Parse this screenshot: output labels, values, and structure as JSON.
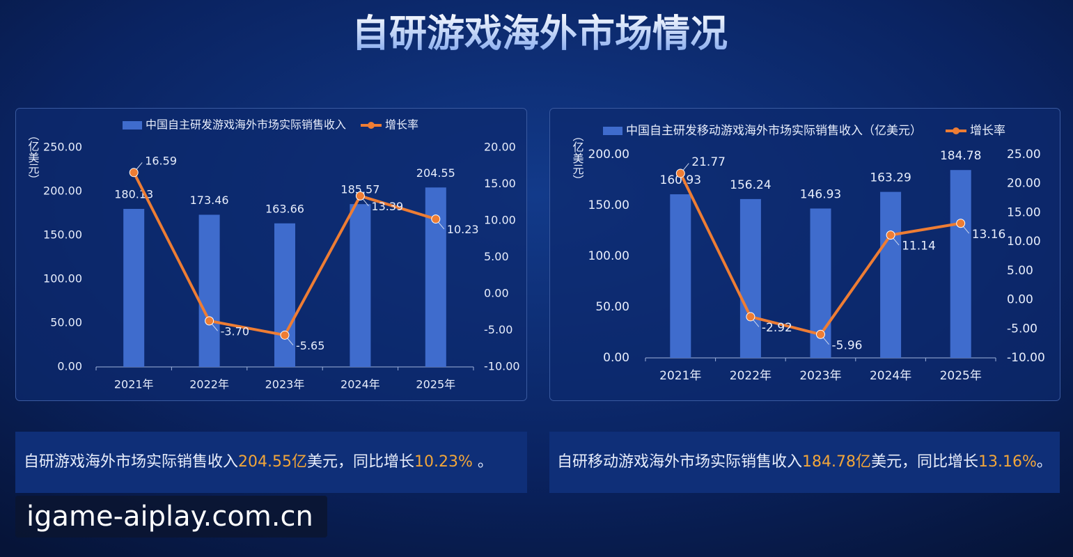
{
  "title": "自研游戏海外市场情况",
  "chart_data": [
    {
      "type": "bar",
      "y_label": "（亿美元）",
      "categories": [
        "2021年",
        "2022年",
        "2023年",
        "2024年",
        "2025年"
      ],
      "series": [
        {
          "name": "中国自主研发游戏海外市场实际销售收入",
          "color": "#3f6ccd",
          "values": [
            180.13,
            173.46,
            163.66,
            185.57,
            204.55
          ],
          "value_labels": [
            "180.13",
            "173.46",
            "163.66",
            "185.57",
            "204.55"
          ]
        },
        {
          "name": "增长率",
          "color": "#ee7d34",
          "axis": "y2",
          "values": [
            16.59,
            -3.7,
            -5.65,
            13.39,
            10.23
          ],
          "value_labels": [
            "16.59",
            "-3.70",
            "-5.65",
            "13.39",
            "10.23"
          ]
        }
      ],
      "ylim": [
        0,
        250
      ],
      "yticks": [
        {
          "value": 0,
          "label": "0.00"
        },
        {
          "value": 50,
          "label": "50.00"
        },
        {
          "value": 100,
          "label": "100.00"
        },
        {
          "value": 150,
          "label": "150.00"
        },
        {
          "value": 200,
          "label": "200.00"
        },
        {
          "value": 250,
          "label": "250.00"
        }
      ],
      "y2lim": [
        -10,
        20
      ],
      "y2ticks": [
        {
          "value": -10,
          "label": "-10.00"
        },
        {
          "value": -5,
          "label": "-5.00"
        },
        {
          "value": 0,
          "label": "0.00"
        },
        {
          "value": 5,
          "label": "5.00"
        },
        {
          "value": 10,
          "label": "10.00"
        },
        {
          "value": 15,
          "label": "15.00"
        },
        {
          "value": 20,
          "label": "20.00"
        }
      ]
    },
    {
      "type": "bar",
      "y_label": "（亿美元）",
      "categories": [
        "2021年",
        "2022年",
        "2023年",
        "2024年",
        "2025年"
      ],
      "series": [
        {
          "name": "中国自主研发移动游戏海外市场实际销售收入（亿美元）",
          "color": "#3f6ccd",
          "values": [
            160.93,
            156.24,
            146.93,
            163.29,
            184.78
          ],
          "value_labels": [
            "160.93",
            "156.24",
            "146.93",
            "163.29",
            "184.78"
          ]
        },
        {
          "name": "增长率",
          "color": "#ee7d34",
          "axis": "y2",
          "values": [
            21.77,
            -2.92,
            -5.96,
            11.14,
            13.16
          ],
          "value_labels": [
            "21.77",
            "-2.92",
            "-5.96",
            "11.14",
            "13.16"
          ]
        }
      ],
      "ylim": [
        0,
        200
      ],
      "yticks": [
        {
          "value": 0,
          "label": "0.00"
        },
        {
          "value": 50,
          "label": "50.00"
        },
        {
          "value": 100,
          "label": "100.00"
        },
        {
          "value": 150,
          "label": "150.00"
        },
        {
          "value": 200,
          "label": "200.00"
        }
      ],
      "y2lim": [
        -10,
        25
      ],
      "y2ticks": [
        {
          "value": -10,
          "label": "-10.00"
        },
        {
          "value": -5,
          "label": "-5.00"
        },
        {
          "value": 0,
          "label": "0.00"
        },
        {
          "value": 5,
          "label": "5.00"
        },
        {
          "value": 10,
          "label": "10.00"
        },
        {
          "value": 15,
          "label": "15.00"
        },
        {
          "value": 20,
          "label": "20.00"
        },
        {
          "value": 25,
          "label": "25.00"
        }
      ]
    }
  ],
  "captions": [
    [
      "自研游戏海外市场实际销售收入",
      "204.55亿",
      "美元，同比增长",
      "10.23%",
      " 。"
    ],
    [
      "自研移动游戏海外市场实际销售收入",
      "184.78亿",
      "美元，同比增长",
      "13.16%",
      "。"
    ]
  ],
  "watermark": "igame-aiplay.com.cn"
}
